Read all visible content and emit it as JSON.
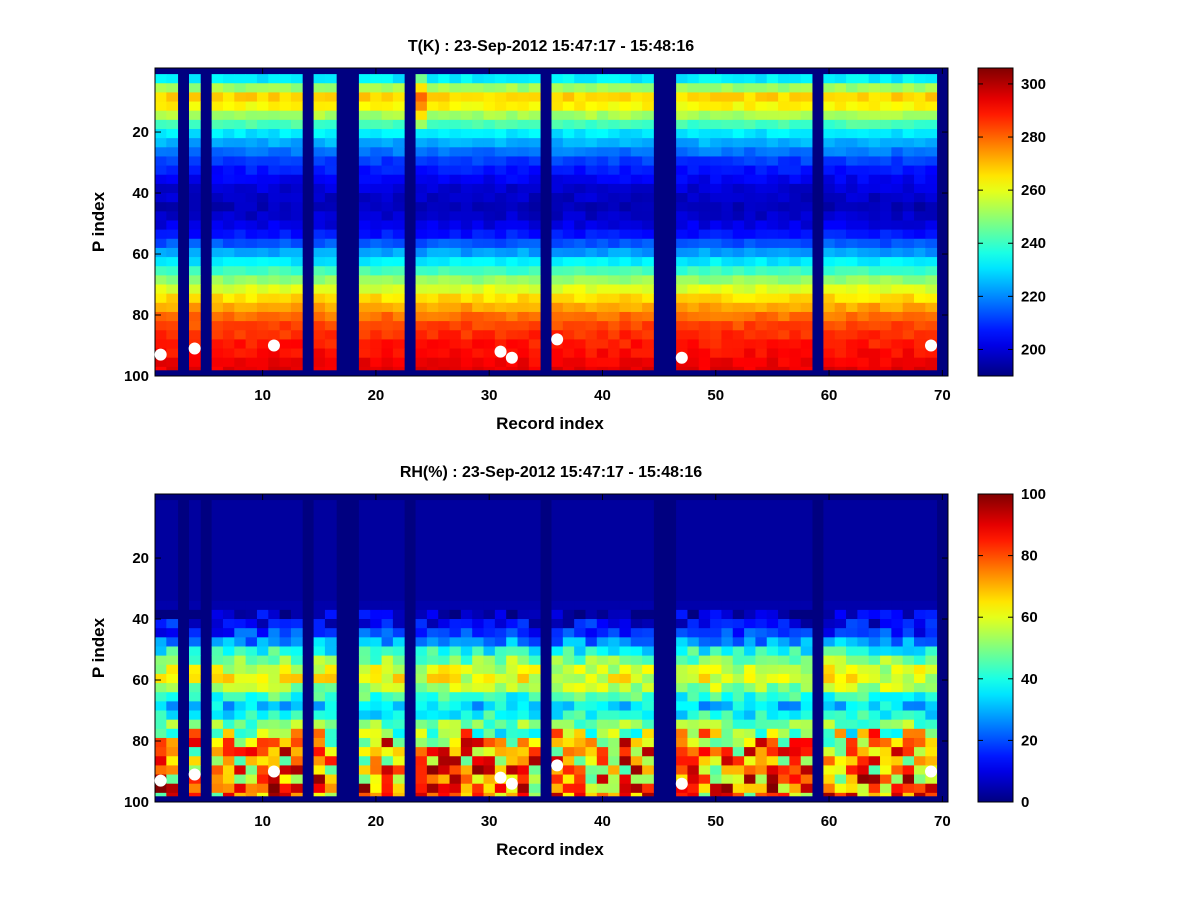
{
  "chart_data": [
    {
      "type": "heatmap",
      "title": "T(K) : 23-Sep-2012 15:47:17 - 15:48:16",
      "xlabel": "Record index",
      "ylabel": "P index",
      "xlim": [
        0.5,
        70.5
      ],
      "ylim": [
        1,
        100
      ],
      "y_reversed": true,
      "xticks": [
        10,
        20,
        30,
        40,
        50,
        60,
        70
      ],
      "yticks": [
        20,
        40,
        60,
        80,
        100
      ],
      "colorbar": {
        "min": 190,
        "max": 306,
        "ticks": [
          200,
          220,
          240,
          260,
          280,
          300
        ],
        "colormap": "jet"
      },
      "missing_records": [
        3,
        5,
        14,
        17,
        18,
        23,
        35,
        45,
        46,
        59,
        70
      ],
      "profile": {
        "p_index": [
          1,
          8,
          12,
          20,
          30,
          38,
          45,
          52,
          58,
          64,
          70,
          76,
          82,
          88,
          98
        ],
        "value": [
          222,
          268,
          262,
          232,
          210,
          200,
          196,
          203,
          218,
          236,
          255,
          270,
          282,
          288,
          294
        ]
      },
      "marker_points": [
        {
          "record": 1,
          "p_index": 93
        },
        {
          "record": 4,
          "p_index": 91
        },
        {
          "record": 11,
          "p_index": 90
        },
        {
          "record": 31,
          "p_index": 92
        },
        {
          "record": 32,
          "p_index": 94
        },
        {
          "record": 36,
          "p_index": 88
        },
        {
          "record": 47,
          "p_index": 94
        },
        {
          "record": 69,
          "p_index": 90
        }
      ]
    },
    {
      "type": "heatmap",
      "title": "RH(%) : 23-Sep-2012 15:47:17 - 15:48:16",
      "xlabel": "Record index",
      "ylabel": "P index",
      "xlim": [
        0.5,
        70.5
      ],
      "ylim": [
        1,
        100
      ],
      "y_reversed": true,
      "xticks": [
        10,
        20,
        30,
        40,
        50,
        60,
        70
      ],
      "yticks": [
        20,
        40,
        60,
        80,
        100
      ],
      "colorbar": {
        "min": 0,
        "max": 100,
        "ticks": [
          0,
          20,
          40,
          60,
          80,
          100
        ],
        "colormap": "jet"
      },
      "missing_records": [
        3,
        5,
        14,
        17,
        18,
        23,
        35,
        45,
        46,
        59,
        70
      ],
      "profile": {
        "p_index": [
          1,
          34,
          40,
          46,
          50,
          55,
          58,
          61,
          64,
          68,
          72,
          76,
          80,
          85,
          90,
          95,
          98
        ],
        "value": [
          3,
          3,
          8,
          20,
          38,
          55,
          62,
          58,
          48,
          32,
          40,
          55,
          68,
          70,
          72,
          75,
          72
        ]
      },
      "marker_points": [
        {
          "record": 1,
          "p_index": 93
        },
        {
          "record": 4,
          "p_index": 91
        },
        {
          "record": 11,
          "p_index": 90
        },
        {
          "record": 31,
          "p_index": 92
        },
        {
          "record": 32,
          "p_index": 94
        },
        {
          "record": 36,
          "p_index": 88
        },
        {
          "record": 47,
          "p_index": 94
        },
        {
          "record": 69,
          "p_index": 90
        }
      ]
    }
  ]
}
